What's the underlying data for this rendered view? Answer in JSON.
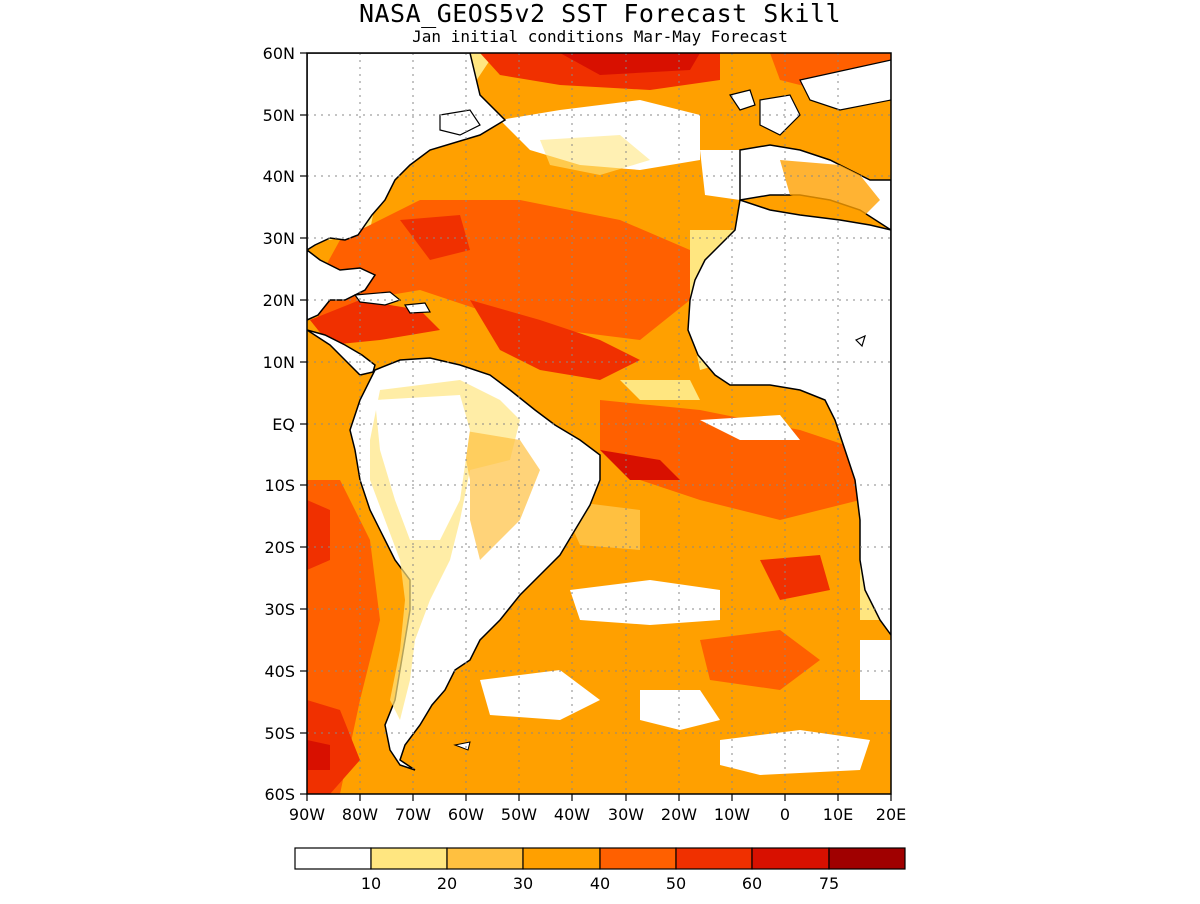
{
  "title": "NASA_GEOS5v2 SST Forecast Skill",
  "subtitle": "Jan initial conditions  Mar-May Forecast",
  "map": {
    "lon_range": [
      -90,
      20
    ],
    "lat_range": [
      -60,
      60
    ],
    "lat_labels": [
      "60N",
      "50N",
      "40N",
      "30N",
      "20N",
      "10N",
      "EQ",
      "10S",
      "20S",
      "30S",
      "40S",
      "50S",
      "60S"
    ],
    "lon_labels": [
      "90W",
      "80W",
      "70W",
      "60W",
      "50W",
      "40W",
      "30W",
      "20W",
      "10W",
      "0",
      "10E",
      "20E"
    ],
    "grid": "dotted",
    "land_color": "#ffffff",
    "coastline_color": "#000000"
  },
  "colorbar": {
    "levels": [
      "10",
      "20",
      "30",
      "40",
      "50",
      "60",
      "75"
    ],
    "colors": [
      "#ffffff",
      "#ffe680",
      "#ffc040",
      "#ffa000",
      "#ff6000",
      "#f03000",
      "#d81000",
      "#a00000"
    ]
  }
}
